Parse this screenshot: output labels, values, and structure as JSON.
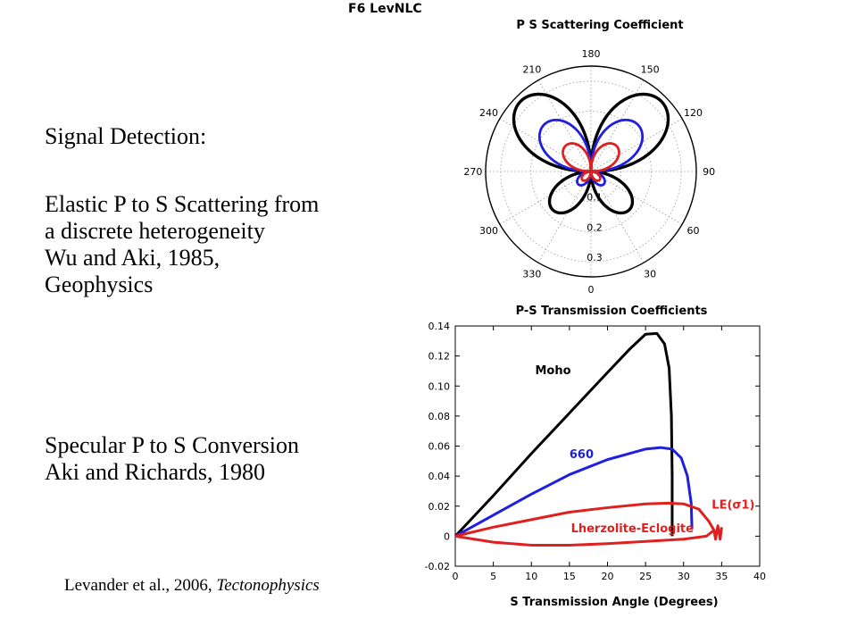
{
  "slide_tag": "F6 LevNLC",
  "text": {
    "heading": "Signal Detection:",
    "wu_lines": [
      "Elastic P to S Scattering from",
      "a discrete heterogeneity",
      "Wu and Aki, 1985,",
      "Geophysics"
    ],
    "aki_lines": [
      "Specular P to S Conversion",
      "Aki and Richards, 1980"
    ],
    "citation_prefix": "Levander et al., 2006, ",
    "citation_journal": "Tectonophysics"
  },
  "chart_data": [
    {
      "type": "polar",
      "title": "P S Scattering Coefficient",
      "angle_ticks": [
        "0",
        "30",
        "60",
        "90",
        "120",
        "150",
        "180",
        "210",
        "240",
        "270",
        "300",
        "330"
      ],
      "radial_ticks": [
        "0.1",
        "0.2",
        "0.3"
      ],
      "rlim": [
        0,
        0.35
      ],
      "grid": true,
      "series": [
        {
          "color": "#000000",
          "peak": 0.33,
          "lobe_center_deg": [
            125,
            235
          ],
          "lower_lobe_peak": 0.18
        },
        {
          "color": "#1f1fe0",
          "peak": 0.22,
          "lobe_center_deg": [
            125,
            235
          ],
          "lower_lobe_peak": 0.06
        },
        {
          "color": "#e01f1f",
          "peak": 0.12,
          "lobe_center_deg": [
            125,
            235
          ],
          "lower_lobe_peak": 0.04
        }
      ]
    },
    {
      "type": "line",
      "title": "P-S Transmission Coefficients",
      "xlabel": "S Transmission Angle (Degrees)",
      "ylabel": "",
      "xlim": [
        0,
        40
      ],
      "ylim": [
        -0.02,
        0.14
      ],
      "xticks": [
        "0",
        "5",
        "10",
        "15",
        "20",
        "25",
        "30",
        "35",
        "40"
      ],
      "yticks": [
        "-0.02",
        "0",
        "0.02",
        "0.04",
        "0.06",
        "0.08",
        "0.10",
        "0.12",
        "0.14"
      ],
      "grid": false,
      "series": [
        {
          "name": "Moho",
          "color": "#000000",
          "x": [
            0,
            5,
            10,
            15,
            20,
            23,
            25,
            26.5,
            27.5,
            28.1,
            28.4,
            28.5,
            28.5
          ],
          "y": [
            0,
            0.027,
            0.055,
            0.082,
            0.109,
            0.125,
            0.1345,
            0.135,
            0.128,
            0.112,
            0.08,
            0.04,
            0.0
          ]
        },
        {
          "name": "660",
          "color": "#1f1fe0",
          "x": [
            0,
            5,
            10,
            15,
            20,
            25,
            27,
            28.5,
            29.7,
            30.5,
            31,
            31.1
          ],
          "y": [
            0,
            0.014,
            0.028,
            0.041,
            0.051,
            0.058,
            0.059,
            0.058,
            0.052,
            0.04,
            0.022,
            0.005
          ]
        },
        {
          "name": "Lherzolite-Eclogite",
          "color": "#e01f1f",
          "x": [
            0,
            5,
            10,
            15,
            20,
            25,
            28,
            30,
            32,
            33.3,
            34,
            34.2,
            34.5,
            34.8,
            35.0
          ],
          "y": [
            0,
            0.006,
            0.011,
            0.016,
            0.019,
            0.0215,
            0.022,
            0.0215,
            0.018,
            0.01,
            0.004,
            -0.002,
            0.007,
            -0.002,
            0.006
          ]
        },
        {
          "name": "Lherzolite-Eclogite lower branch",
          "color": "#e01f1f",
          "x": [
            0,
            5,
            10,
            15,
            20,
            25,
            30,
            33,
            34
          ],
          "y": [
            0,
            -0.004,
            -0.006,
            -0.006,
            -0.005,
            -0.0035,
            -0.002,
            0.0,
            0.004
          ]
        }
      ],
      "annotations": [
        "Moho",
        "660",
        "Lherzolite-Eclogite",
        "LE(σ1)"
      ]
    }
  ]
}
